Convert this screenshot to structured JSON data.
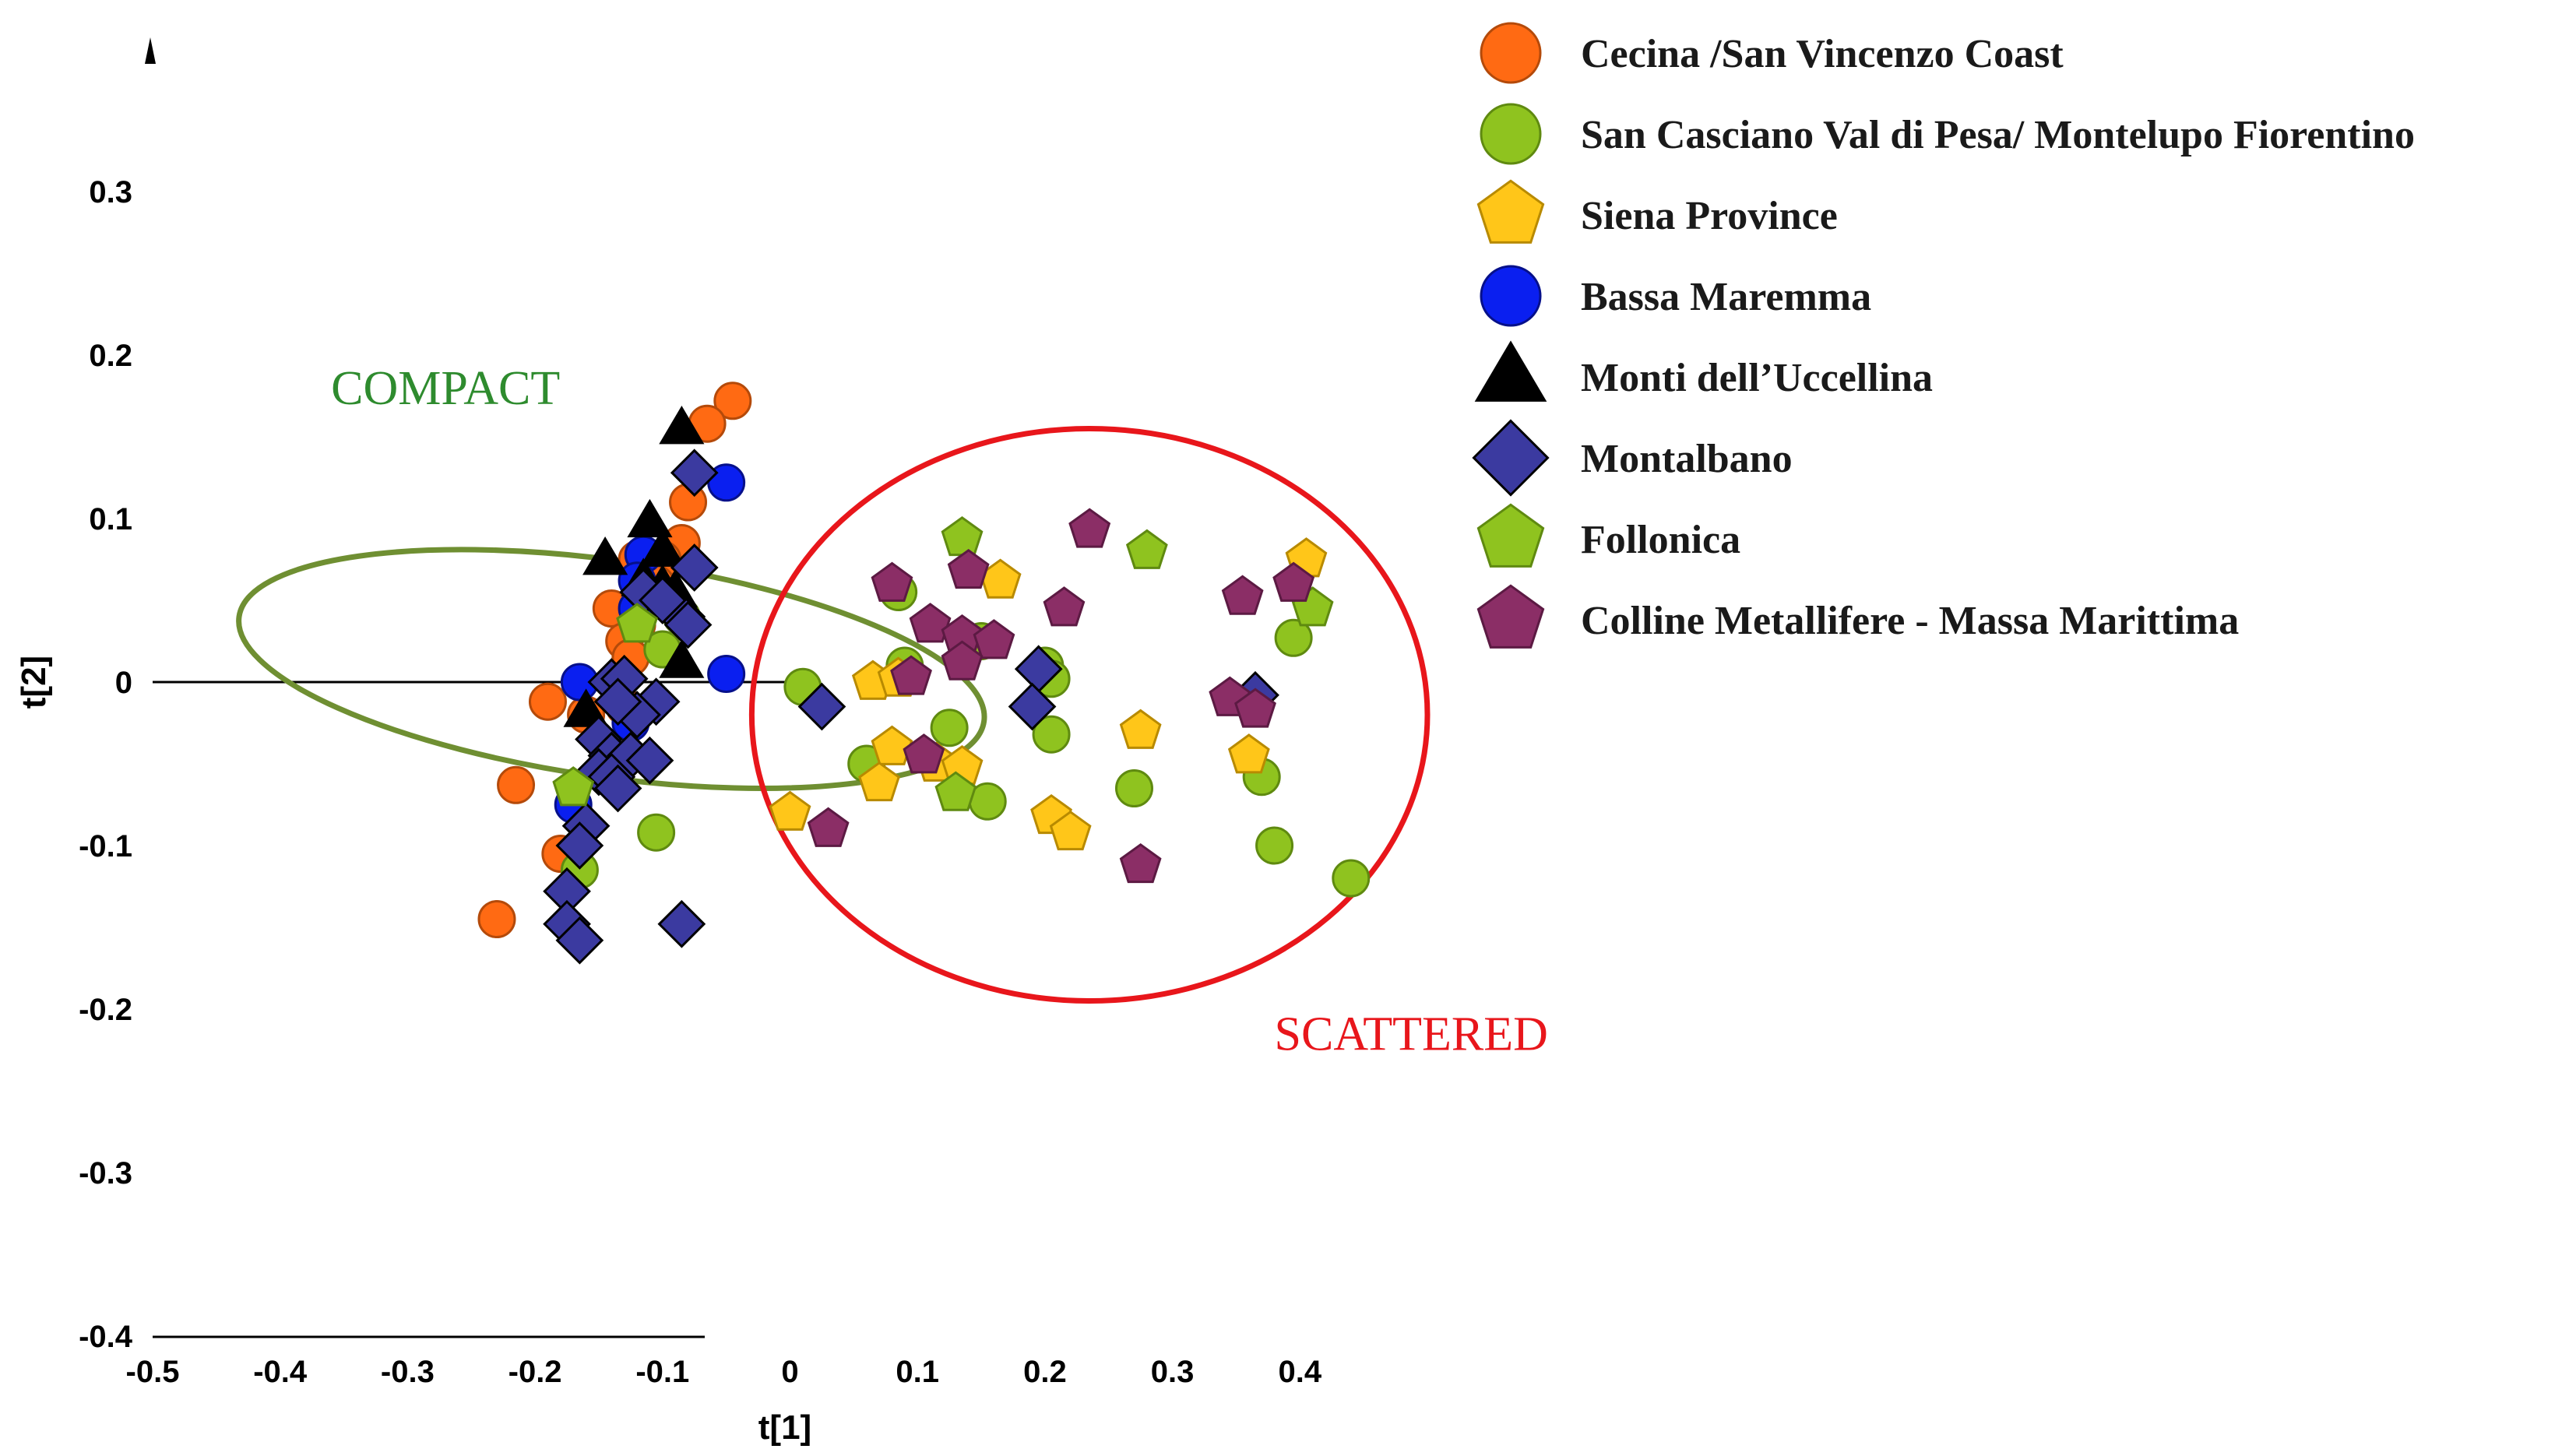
{
  "chart_data": {
    "type": "scatter",
    "title": "",
    "xlabel": "t[1]",
    "ylabel": "t[2]",
    "xlim": [
      -0.5,
      0.45
    ],
    "ylim": [
      -0.4,
      0.38
    ],
    "xticks": [
      "-0.5",
      "-0.4",
      "-0.3",
      "-0.2",
      "-0.1",
      "0",
      "0.1",
      "0.2",
      "0.3",
      "0.4"
    ],
    "yticks": [
      "0.3",
      "0.2",
      "0.1",
      "0",
      "-0.1",
      "-0.2",
      "-0.3",
      "-0.4"
    ],
    "legend_position": "top-right",
    "annotations": [
      {
        "label": "COMPACT",
        "color": "#2e8b2e",
        "x": -0.36,
        "y": 0.17
      },
      {
        "label": "SCATTERED",
        "color": "#e8161b",
        "x": 0.38,
        "y": -0.225
      }
    ],
    "ellipses": [
      {
        "name": "compact",
        "color": "#6f8f32",
        "cx": -0.14,
        "cy": 0.008,
        "rx": 0.085,
        "ry": 0.23,
        "angle": -82
      },
      {
        "name": "scattered",
        "color": "#e8161b",
        "cx": 0.235,
        "cy": -0.02,
        "rx": 0.265,
        "ry": 0.175,
        "angle": 0
      }
    ],
    "series": [
      {
        "name": "Cecina /San Vincenzo Coast",
        "marker": "circle",
        "color": "#ff6a13",
        "stroke": "#b44a0a",
        "points": [
          [
            -0.045,
            0.172
          ],
          [
            -0.065,
            0.158
          ],
          [
            -0.08,
            0.11
          ],
          [
            -0.085,
            0.085
          ],
          [
            -0.1,
            0.075
          ],
          [
            -0.12,
            0.075
          ],
          [
            -0.115,
            0.058
          ],
          [
            -0.14,
            0.045
          ],
          [
            -0.12,
            0.035
          ],
          [
            -0.13,
            0.025
          ],
          [
            -0.125,
            0.015
          ],
          [
            -0.19,
            -0.012
          ],
          [
            -0.16,
            -0.02
          ],
          [
            -0.13,
            -0.015
          ],
          [
            -0.215,
            -0.063
          ],
          [
            -0.18,
            -0.105
          ],
          [
            -0.23,
            -0.145
          ],
          [
            -0.105,
            0.06
          ],
          [
            -0.095,
            0.05
          ]
        ]
      },
      {
        "name": "San Casciano Val  di Pesa/ Montelupo Fiorentino",
        "marker": "circle",
        "color": "#8fc31f",
        "stroke": "#5f8a10",
        "points": [
          [
            0.01,
            -0.003
          ],
          [
            0.085,
            0.055
          ],
          [
            0.09,
            0.01
          ],
          [
            0.15,
            0.025
          ],
          [
            0.2,
            0.01
          ],
          [
            0.205,
            0.002
          ],
          [
            0.125,
            -0.028
          ],
          [
            0.205,
            -0.032
          ],
          [
            0.06,
            -0.05
          ],
          [
            0.155,
            -0.073
          ],
          [
            0.27,
            -0.065
          ],
          [
            0.37,
            -0.058
          ],
          [
            0.38,
            -0.1
          ],
          [
            0.395,
            0.027
          ],
          [
            0.44,
            -0.12
          ],
          [
            -0.105,
            -0.092
          ],
          [
            -0.165,
            -0.115
          ],
          [
            -0.1,
            0.02
          ],
          [
            -0.085,
            0.04
          ]
        ]
      },
      {
        "name": "Siena Province",
        "marker": "pentagon",
        "color": "#ffc619",
        "stroke": "#b88a00",
        "points": [
          [
            0.0,
            -0.08
          ],
          [
            0.065,
            0.0
          ],
          [
            0.085,
            0.002
          ],
          [
            0.165,
            0.062
          ],
          [
            0.08,
            -0.04
          ],
          [
            0.07,
            -0.062
          ],
          [
            0.115,
            -0.05
          ],
          [
            0.135,
            -0.052
          ],
          [
            0.205,
            -0.082
          ],
          [
            0.22,
            -0.092
          ],
          [
            0.275,
            -0.03
          ],
          [
            0.36,
            -0.045
          ],
          [
            0.405,
            0.075
          ]
        ]
      },
      {
        "name": "Bassa Maremma",
        "marker": "circle",
        "color": "#0a1ff0",
        "stroke": "#06108a",
        "points": [
          [
            -0.05,
            0.122
          ],
          [
            -0.115,
            0.078
          ],
          [
            -0.12,
            0.062
          ],
          [
            -0.12,
            0.045
          ],
          [
            -0.05,
            0.005
          ],
          [
            -0.165,
            0.0
          ],
          [
            -0.125,
            -0.025
          ],
          [
            -0.17,
            -0.075
          ]
        ]
      },
      {
        "name": "Monti dell’Uccellina",
        "marker": "triangle",
        "color": "#000000",
        "stroke": "#000000",
        "points": [
          [
            -0.085,
            0.155
          ],
          [
            -0.11,
            0.098
          ],
          [
            -0.145,
            0.075
          ],
          [
            -0.1,
            0.08
          ],
          [
            -0.115,
            0.062
          ],
          [
            -0.1,
            0.058
          ],
          [
            -0.09,
            0.055
          ],
          [
            -0.085,
            0.012
          ],
          [
            -0.16,
            -0.018
          ]
        ]
      },
      {
        "name": "Montalbano",
        "marker": "diamond",
        "color": "#3b3aa0",
        "stroke": "#000000",
        "points": [
          [
            -0.075,
            0.128
          ],
          [
            -0.075,
            0.07
          ],
          [
            -0.085,
            0.04
          ],
          [
            -0.115,
            0.055
          ],
          [
            -0.1,
            0.05
          ],
          [
            -0.08,
            0.035
          ],
          [
            -0.14,
            0.0
          ],
          [
            -0.13,
            0.002
          ],
          [
            -0.105,
            -0.012
          ],
          [
            -0.12,
            -0.02
          ],
          [
            -0.135,
            -0.012
          ],
          [
            -0.15,
            -0.035
          ],
          [
            -0.14,
            -0.045
          ],
          [
            -0.125,
            -0.045
          ],
          [
            -0.11,
            -0.048
          ],
          [
            -0.15,
            -0.055
          ],
          [
            -0.14,
            -0.058
          ],
          [
            -0.135,
            -0.065
          ],
          [
            -0.16,
            -0.088
          ],
          [
            -0.165,
            -0.1
          ],
          [
            -0.175,
            -0.128
          ],
          [
            -0.175,
            -0.148
          ],
          [
            -0.165,
            -0.158
          ],
          [
            -0.085,
            -0.148
          ],
          [
            0.025,
            -0.015
          ],
          [
            0.195,
            0.008
          ],
          [
            0.19,
            -0.015
          ],
          [
            0.365,
            -0.008
          ]
        ]
      },
      {
        "name": "Follonica",
        "marker": "pentagon",
        "color": "#8fc31f",
        "stroke": "#5f8a10",
        "points": [
          [
            0.135,
            0.088
          ],
          [
            0.28,
            0.08
          ],
          [
            0.41,
            0.045
          ],
          [
            0.13,
            -0.068
          ],
          [
            -0.17,
            -0.065
          ],
          [
            -0.12,
            0.035
          ]
        ]
      },
      {
        "name": "Colline Metallifere - Massa Marittima",
        "marker": "pentagon",
        "color": "#8b2e66",
        "stroke": "#5c1a43",
        "points": [
          [
            0.235,
            0.093
          ],
          [
            0.08,
            0.06
          ],
          [
            0.14,
            0.068
          ],
          [
            0.215,
            0.045
          ],
          [
            0.355,
            0.052
          ],
          [
            0.395,
            0.06
          ],
          [
            0.11,
            0.035
          ],
          [
            0.135,
            0.028
          ],
          [
            0.16,
            0.025
          ],
          [
            0.135,
            0.012
          ],
          [
            0.095,
            0.003
          ],
          [
            0.345,
            -0.01
          ],
          [
            0.365,
            -0.017
          ],
          [
            0.105,
            -0.045
          ],
          [
            0.03,
            -0.09
          ],
          [
            0.275,
            -0.112
          ]
        ]
      }
    ]
  }
}
